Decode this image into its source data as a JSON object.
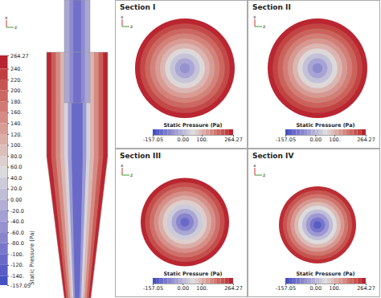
{
  "chart_data": {
    "type": "contour",
    "colorbar": {
      "title": "Static Pressure (Pa)",
      "range": [
        -157.05,
        264.27
      ],
      "ticks": [
        264.27,
        {
          "value": 240,
          "label": "240."
        },
        {
          "value": 220,
          "label": "220."
        },
        {
          "value": 200,
          "label": "200."
        },
        {
          "value": 180,
          "label": "180."
        },
        {
          "value": 160,
          "label": "160."
        },
        {
          "value": 140,
          "label": "140."
        },
        {
          "value": 120,
          "label": "120."
        },
        {
          "value": 100,
          "label": "100."
        },
        {
          "value": 80,
          "label": "80.0"
        },
        {
          "value": 60,
          "label": "60.0"
        },
        {
          "value": 40,
          "label": "40.0"
        },
        {
          "value": 20,
          "label": "20.0"
        },
        {
          "value": 0,
          "label": "0.00"
        },
        {
          "value": -20,
          "label": "-20.0"
        },
        {
          "value": -40,
          "label": "-40.0"
        },
        {
          "value": -60,
          "label": "-60.0"
        },
        {
          "value": -80,
          "label": "-80.0"
        },
        {
          "value": -100,
          "label": "-100."
        },
        {
          "value": -120,
          "label": "-120."
        },
        {
          "value": -140,
          "label": "-140."
        },
        -157.05
      ]
    },
    "section_colorbar_ticks": [
      -157.05,
      {
        "value": 0,
        "label": "0.00"
      },
      {
        "value": 100,
        "label": "100."
      },
      264.27
    ],
    "axis_labels": [
      "x",
      "z"
    ],
    "longitudinal_section": {
      "width_fraction": [
        1.0,
        0.85,
        0.7,
        0.55,
        0.42,
        0.3,
        0.18
      ],
      "pressure": [
        250,
        200,
        150,
        100,
        40,
        -40,
        -110
      ]
    },
    "vortex_finder": {
      "width_fraction": [
        1.0,
        0.6,
        0.3
      ],
      "pressure": [
        -20,
        -60,
        -100
      ]
    },
    "sections": [
      {
        "title": "Section I",
        "radius_fraction": [
          1.0,
          0.9,
          0.8,
          0.7,
          0.6,
          0.5,
          0.4,
          0.3,
          0.2,
          0.1
        ],
        "pressure": [
          250,
          220,
          190,
          160,
          130,
          100,
          60,
          20,
          -20,
          -50
        ]
      },
      {
        "title": "Section II",
        "radius_fraction": [
          1.0,
          0.9,
          0.8,
          0.7,
          0.6,
          0.5,
          0.4,
          0.3,
          0.2,
          0.1
        ],
        "pressure": [
          250,
          225,
          195,
          165,
          135,
          100,
          60,
          15,
          -25,
          -60
        ]
      },
      {
        "title": "Section III",
        "radius_fraction": [
          1.0,
          0.9,
          0.8,
          0.7,
          0.6,
          0.5,
          0.4,
          0.3,
          0.2,
          0.1
        ],
        "pressure": [
          250,
          215,
          180,
          145,
          110,
          70,
          30,
          -20,
          -70,
          -110
        ]
      },
      {
        "title": "Section IV",
        "radius_fraction": [
          1.0,
          0.9,
          0.8,
          0.7,
          0.6,
          0.5,
          0.4,
          0.3,
          0.2,
          0.1
        ],
        "pressure": [
          245,
          210,
          175,
          135,
          95,
          55,
          10,
          -40,
          -90,
          -130
        ]
      }
    ]
  }
}
